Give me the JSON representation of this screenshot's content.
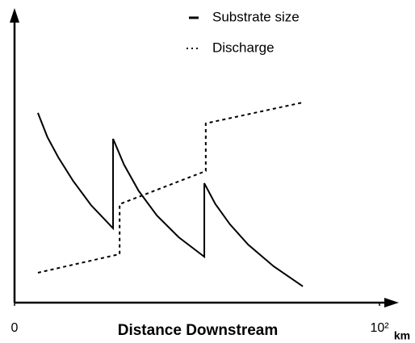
{
  "chart_data": {
    "type": "line",
    "xlabel": "Distance Downstream",
    "xunit": "km",
    "xlim": [
      0,
      100
    ],
    "xticks": [
      0,
      {
        "value": 100,
        "label": "10²"
      }
    ],
    "ylim": [
      0,
      100
    ],
    "legend": "top-right",
    "series": [
      {
        "name": "Substrate size",
        "color": "#000000",
        "style": "solid",
        "x": [
          6.4,
          9,
          12,
          16,
          21,
          27,
          27,
          30,
          34,
          39,
          45,
          52,
          52,
          55,
          59,
          64,
          71,
          79
        ],
        "values": [
          65.3,
          57,
          50,
          42,
          33.5,
          25.6,
          56.4,
          47.5,
          38.5,
          30,
          22.5,
          15.8,
          41.1,
          34,
          27,
          20,
          12.5,
          5.6
        ]
      },
      {
        "name": "Discharge",
        "color": "#000000",
        "style": "dotted",
        "x": [
          6.4,
          28.8,
          28.8,
          52.4,
          52.4,
          79
        ],
        "values": [
          10.3,
          16.7,
          33.9,
          45.3,
          61.7,
          68.9
        ]
      }
    ]
  }
}
